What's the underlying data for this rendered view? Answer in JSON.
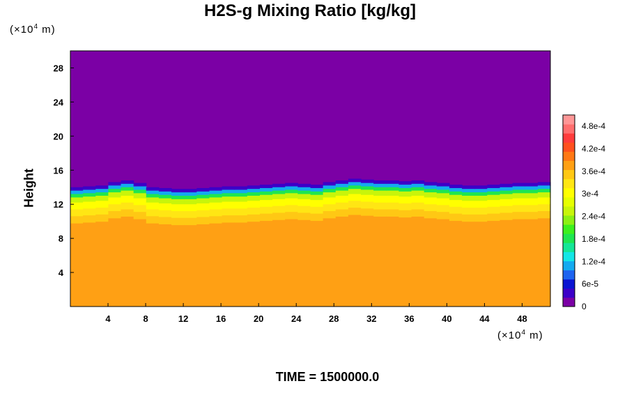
{
  "chart_data": {
    "type": "heatmap",
    "title": "H2S-g Mixing Ratio [kg/kg]",
    "ylabel": "Height",
    "x_unit": {
      "prefix": "(×10",
      "exp": "4",
      "suffix": " m)"
    },
    "y_unit": {
      "prefix": "(×10",
      "exp": "4",
      "suffix": " m)"
    },
    "xlim": [
      0,
      51
    ],
    "ylim": [
      0,
      30
    ],
    "x_ticks": [
      "4",
      "8",
      "12",
      "16",
      "20",
      "24",
      "28",
      "32",
      "36",
      "40",
      "44",
      "48"
    ],
    "y_ticks": [
      "4",
      "8",
      "12",
      "16",
      "20",
      "24",
      "28"
    ],
    "colorbar": {
      "range": [
        0,
        0.00051
      ],
      "tick_labels": [
        "0",
        "6e-5",
        "1.2e-4",
        "1.8e-4",
        "2.4e-4",
        "3e-4",
        "3.6e-4",
        "4.2e-4",
        "4.8e-4"
      ],
      "colors": [
        "#7b00a5",
        "#3c00c8",
        "#0a14d2",
        "#1e64f0",
        "#14aaf0",
        "#14e6e6",
        "#14e696",
        "#1ee650",
        "#3cf01e",
        "#8cf014",
        "#c8f50a",
        "#e6ff00",
        "#ffff00",
        "#ffe614",
        "#ffc814",
        "#ffa014",
        "#ff7814",
        "#ff501e",
        "#ff3c3c",
        "#ff6e6e",
        "#ff9696"
      ]
    },
    "field": {
      "upper_value": 0.0,
      "lower_value": 0.00037,
      "interface_height": [
        14.0,
        14.1,
        14.2,
        14.6,
        14.8,
        14.5,
        14.0,
        13.9,
        13.8,
        13.8,
        13.9,
        14.0,
        14.1,
        14.1,
        14.2,
        14.3,
        14.4,
        14.5,
        14.4,
        14.3,
        14.6,
        14.8,
        15.0,
        14.9,
        14.8,
        14.8,
        14.7,
        14.8,
        14.6,
        14.5,
        14.3,
        14.2,
        14.2,
        14.3,
        14.4,
        14.5,
        14.5,
        14.6
      ],
      "transition_profile": [
        {
          "depth": 0.0,
          "value": 3e-05
        },
        {
          "depth": 0.4,
          "value": 0.00012
        },
        {
          "depth": 0.8,
          "value": 0.00019
        },
        {
          "depth": 1.2,
          "value": 0.00025
        },
        {
          "depth": 1.8,
          "value": 0.0003
        },
        {
          "depth": 2.6,
          "value": 0.00033
        },
        {
          "depth": 3.4,
          "value": 0.00035
        },
        {
          "depth": 4.2,
          "value": 0.00037
        }
      ]
    }
  },
  "footer": {
    "time_label": "TIME = 1500000.0"
  }
}
